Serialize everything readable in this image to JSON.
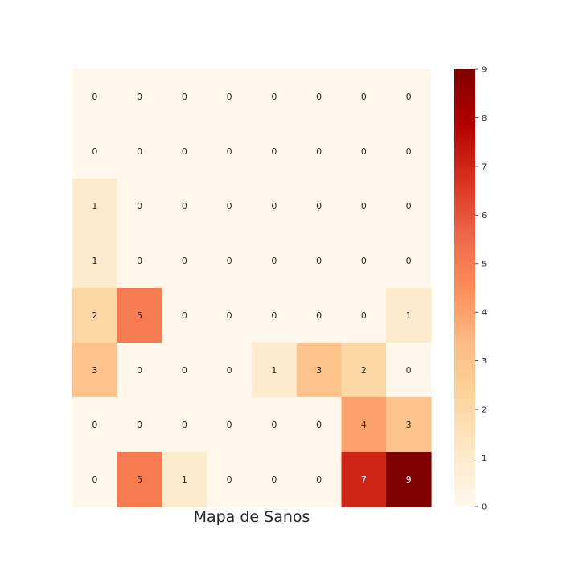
{
  "chart_data": {
    "type": "heatmap",
    "title": "Mapa de Sanos",
    "xlabel": "",
    "ylabel": "",
    "rows": 8,
    "cols": 8,
    "values": [
      [
        0,
        0,
        0,
        0,
        0,
        0,
        0,
        0
      ],
      [
        0,
        0,
        0,
        0,
        0,
        0,
        0,
        0
      ],
      [
        1,
        0,
        0,
        0,
        0,
        0,
        0,
        0
      ],
      [
        1,
        0,
        0,
        0,
        0,
        0,
        0,
        0
      ],
      [
        2,
        5,
        0,
        0,
        0,
        0,
        0,
        1
      ],
      [
        3,
        0,
        0,
        0,
        1,
        3,
        2,
        0
      ],
      [
        0,
        0,
        0,
        0,
        0,
        0,
        4,
        3
      ],
      [
        0,
        5,
        1,
        0,
        0,
        0,
        7,
        9
      ]
    ],
    "colorbar": {
      "min": 0,
      "max": 9,
      "ticks": [
        0,
        1,
        2,
        3,
        4,
        5,
        6,
        7,
        8,
        9
      ],
      "colormap": "OrRd"
    },
    "annotated": true,
    "grid": false
  }
}
